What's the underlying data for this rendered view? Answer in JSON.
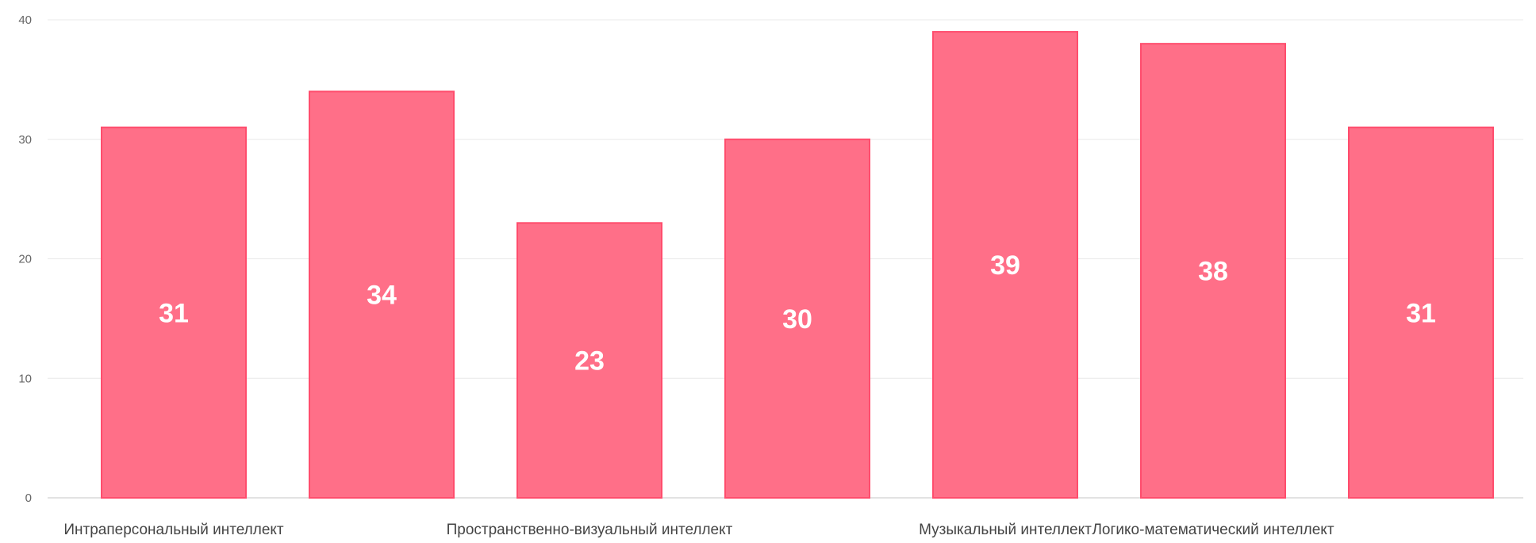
{
  "chart_data": {
    "type": "bar",
    "categories": [
      "Интраперсональный интеллект",
      "",
      "Пространственно-визуальный интеллект",
      "",
      "Музыкальный интеллект",
      "Логико-математический интеллект",
      ""
    ],
    "values": [
      31,
      34,
      23,
      30,
      39,
      38,
      31
    ],
    "title": "",
    "xlabel": "",
    "ylabel": "",
    "ylim": [
      0,
      40
    ],
    "yticks": [
      0,
      10,
      20,
      30,
      40
    ],
    "grid": true,
    "legend": "none",
    "data_labels": true,
    "colors": {
      "bar_fill": "#ff6f88",
      "bar_border": "#ff4d6d",
      "value_text": "#ffffff"
    }
  }
}
